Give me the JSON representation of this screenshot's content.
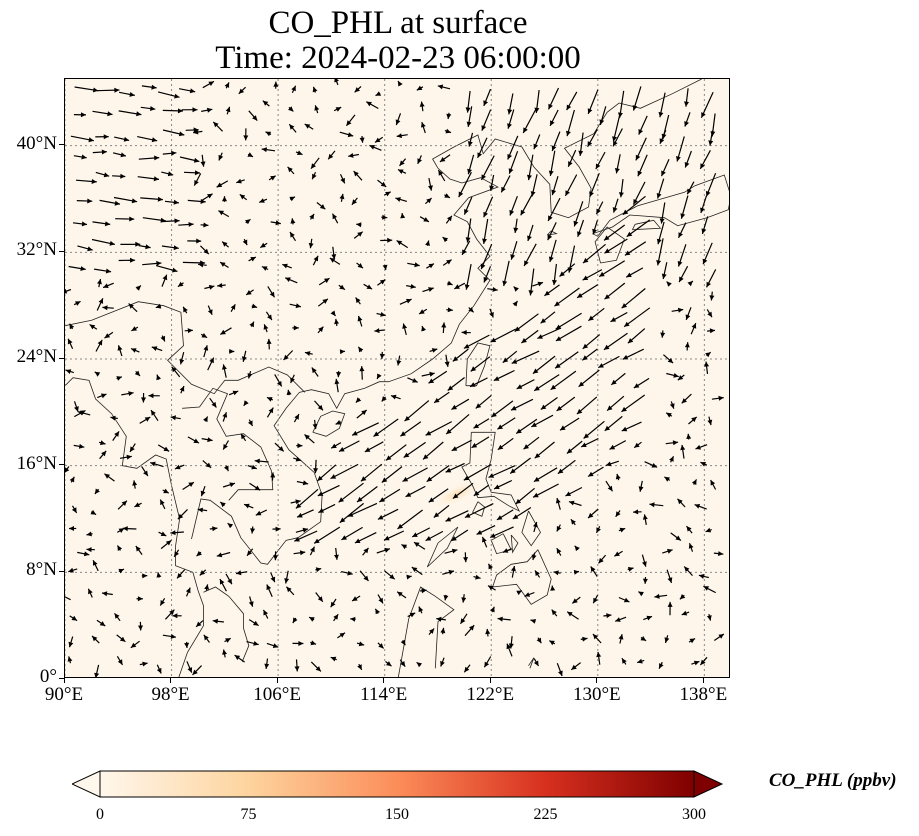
{
  "title": {
    "line1": "CO_PHL at surface",
    "line2": "Time: 2024-02-23 06:00:00"
  },
  "map": {
    "projection": "PlateCarree",
    "lon_range": [
      90,
      140
    ],
    "lat_range": [
      0,
      45
    ],
    "gridlines": "dotted",
    "background_color": "#fef6ea",
    "coastlines": true,
    "borders": true,
    "vector_field": "surface wind arrows"
  },
  "axes": {
    "x_ticks": [
      "90°E",
      "98°E",
      "106°E",
      "114°E",
      "122°E",
      "130°E",
      "138°E"
    ],
    "y_ticks": [
      "0°",
      "8°N",
      "16°N",
      "24°N",
      "32°N",
      "40°N"
    ],
    "x_tick_values": [
      90,
      98,
      106,
      114,
      122,
      130,
      138
    ],
    "y_tick_values": [
      0,
      8,
      16,
      24,
      32,
      40
    ]
  },
  "chart_data": {
    "type": "heatmap",
    "title": "CO_PHL at surface\nTime: 2024-02-23 06:00:00",
    "xlabel": "",
    "ylabel": "",
    "xlim": [
      90,
      140
    ],
    "ylim": [
      0,
      45
    ],
    "colormap": "OrRd",
    "colorbar": {
      "label": "CO_PHL (ppbv)",
      "range": [
        0,
        300
      ],
      "ticks": [
        0,
        75,
        150,
        225,
        300
      ],
      "tick_labels": [
        "0",
        "75",
        "150",
        "225",
        "300"
      ],
      "extend": "both",
      "colors": [
        "#fff7ec",
        "#fdd49e",
        "#fc8d59",
        "#d7301f",
        "#7f0000"
      ]
    },
    "field_note": "Near-zero CO_PHL almost everywhere; faint plume west of Luzon (~118-120°E, ~14-15°N)"
  }
}
